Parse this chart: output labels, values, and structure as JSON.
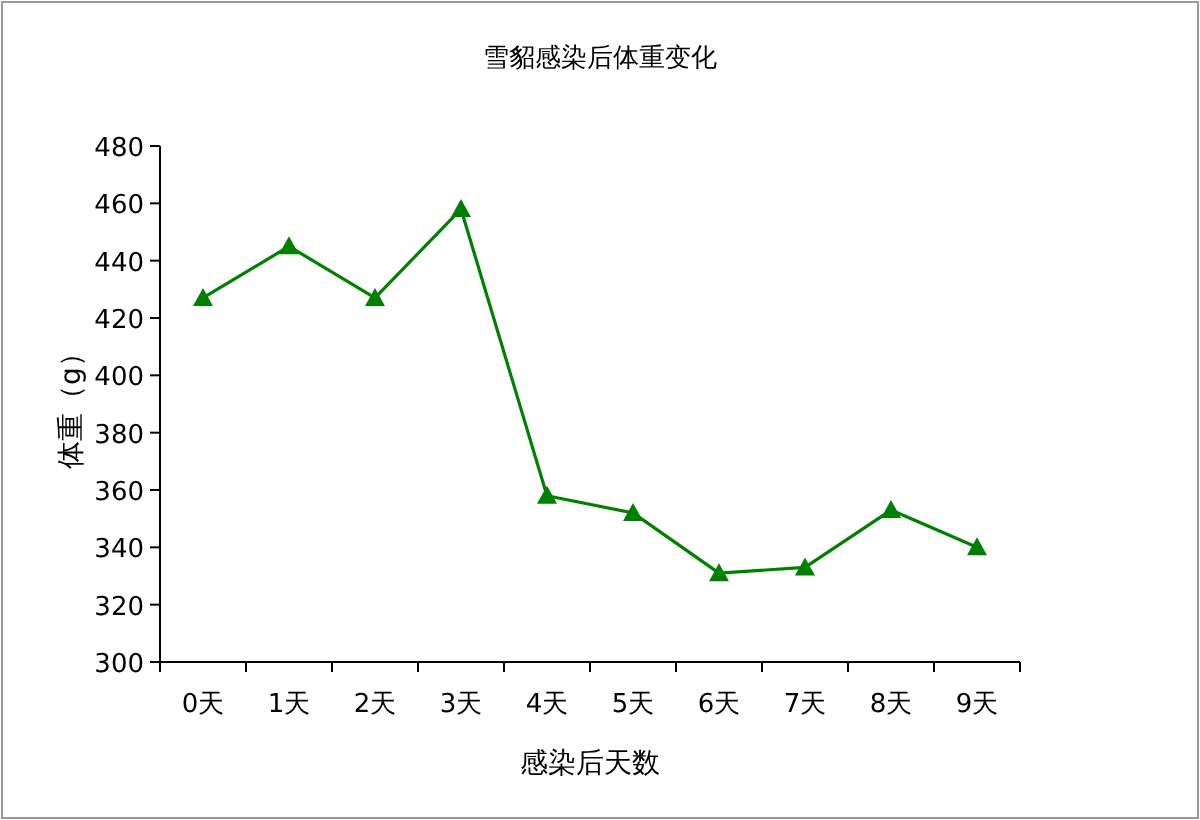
{
  "chart_data": {
    "type": "line",
    "title": "雪貂感染后体重变化",
    "xlabel": "感染后天数",
    "ylabel": "体重（g）",
    "categories": [
      "0天",
      "1天",
      "2天",
      "3天",
      "4天",
      "5天",
      "6天",
      "7天",
      "8天",
      "9天"
    ],
    "series": [
      {
        "color": "#008000",
        "values": [
          427,
          445,
          427,
          458,
          358,
          352,
          331,
          333,
          353,
          340
        ]
      }
    ],
    "ylim": [
      300,
      480
    ],
    "yticks": [
      300,
      320,
      340,
      360,
      380,
      400,
      420,
      440,
      460,
      480
    ],
    "marker": "triangle"
  }
}
